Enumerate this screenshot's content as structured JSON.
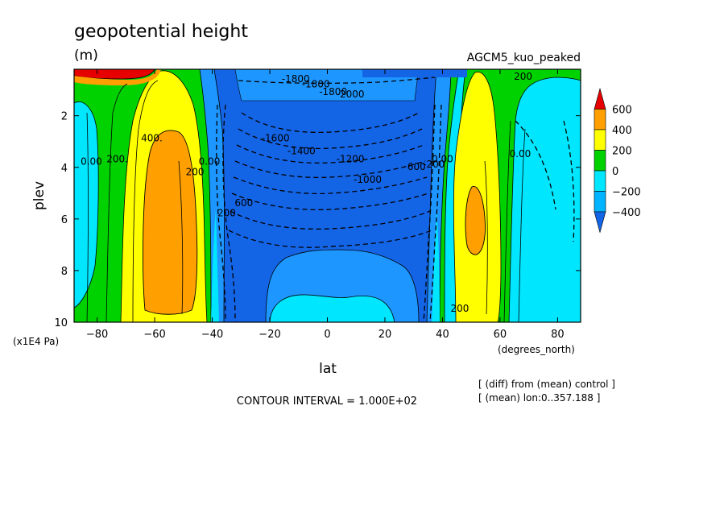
{
  "chart_data": {
    "type": "heatmap",
    "title": "geopotential height",
    "units": "(m)",
    "run_label": "AGCM5_kuo_peaked",
    "xlabel": "lat",
    "x_units": "(degrees_north)",
    "ylabel": "plev",
    "y_units": "(x1E4 Pa)",
    "xlim": [
      -88,
      88
    ],
    "ylim": [
      10,
      0.2
    ],
    "x_ticks": [
      -80,
      -60,
      -40,
      -20,
      0,
      20,
      40,
      60,
      80
    ],
    "x_tick_labels": [
      "−80",
      "−60",
      "−40",
      "−20",
      "0",
      "20",
      "40",
      "60",
      "80"
    ],
    "y_ticks": [
      2,
      4,
      6,
      8,
      10
    ],
    "y_tick_labels": [
      "2",
      "4",
      "6",
      "8",
      "10"
    ],
    "contour_interval_text": "CONTOUR INTERVAL = 1.000E+02",
    "note_lines": [
      "[ (diff) from (mean) control ]",
      "[ (mean) lon:0..357.188 ]"
    ],
    "colorbar": {
      "levels": [
        -400,
        -200,
        0,
        200,
        400,
        600
      ],
      "labels": [
        "−400",
        "−200",
        "0",
        "200",
        "400",
        "600"
      ],
      "colors": [
        "#1464e6",
        "#00b4ff",
        "#00e6ff",
        "#00d200",
        "#ffff00",
        "#ffa000",
        "#e60000"
      ]
    },
    "fill_colors": {
      "below_-400": "#1464e6",
      "-400_-200": "#1e96ff",
      "-200_0": "#00e6ff",
      "0_200": "#00d200",
      "200_400": "#ffff00",
      "400_600": "#ffa000",
      "above_600": "#e60000"
    },
    "contour_labels": [
      {
        "text": "0.00",
        "lat": -82,
        "plev": 3.9
      },
      {
        "text": "200.",
        "lat": -73,
        "plev": 3.8
      },
      {
        "text": "400.",
        "lat": -61,
        "plev": 3.0
      },
      {
        "text": "200",
        "lat": -46,
        "plev": 4.3
      },
      {
        "text": "0.00",
        "lat": -41,
        "plev": 3.9
      },
      {
        "text": "200",
        "lat": -35,
        "plev": 5.9
      },
      {
        "text": "600",
        "lat": -29,
        "plev": 5.5
      },
      {
        "text": "-1600",
        "lat": -18,
        "plev": 3.0
      },
      {
        "text": "-1400",
        "lat": -9,
        "plev": 3.5
      },
      {
        "text": "-1200",
        "lat": 8,
        "plev": 3.8
      },
      {
        "text": "-1000",
        "lat": 14,
        "plev": 4.6
      },
      {
        "text": "-1800",
        "lat": -11,
        "plev": 0.7
      },
      {
        "text": "-1800",
        "lat": -4,
        "plev": 0.9
      },
      {
        "text": "-1800",
        "lat": 2,
        "plev": 1.2
      },
      {
        "text": "-2000",
        "lat": 8,
        "plev": 1.3
      },
      {
        "text": "600",
        "lat": 31,
        "plev": 4.1
      },
      {
        "text": "-200",
        "lat": 37,
        "plev": 4.0
      },
      {
        "text": "0.00",
        "lat": 40,
        "plev": 3.8
      },
      {
        "text": "0.00",
        "lat": 67,
        "plev": 3.6
      },
      {
        "text": "200",
        "lat": 68,
        "plev": 0.6
      },
      {
        "text": "200",
        "lat": 46,
        "plev": 9.6
      }
    ]
  }
}
